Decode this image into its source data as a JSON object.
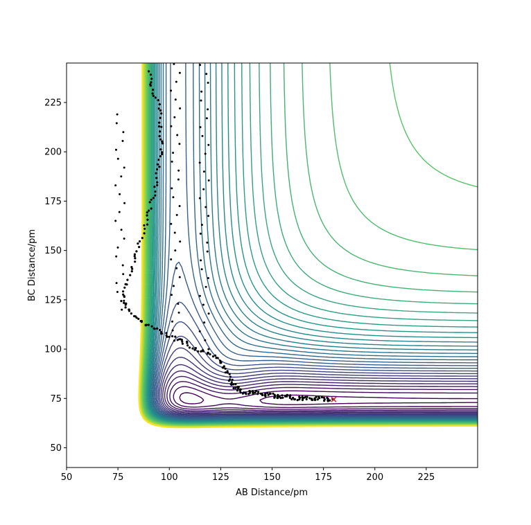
{
  "chart_data": {
    "type": "contour",
    "title": "",
    "xlabel": "AB Distance/pm",
    "ylabel": "BC Distance/pm",
    "xlim": [
      50,
      250
    ],
    "ylim": [
      40,
      245
    ],
    "xticks": [
      50,
      75,
      100,
      125,
      150,
      175,
      200,
      225
    ],
    "yticks": [
      50,
      75,
      100,
      125,
      150,
      175,
      200,
      225
    ],
    "xtick_labels": [
      "50",
      "75",
      "100",
      "125",
      "150",
      "175",
      "200",
      "225"
    ],
    "ytick_labels": [
      "50",
      "75",
      "100",
      "125",
      "150",
      "175",
      "200",
      "225"
    ],
    "colormap": [
      "#440154",
      "#3b528b",
      "#21918c",
      "#5ec962",
      "#fde725"
    ],
    "contour_levels": 40,
    "surface": {
      "well_depth": 1.0,
      "well_min_x": 95,
      "well_min_y": 74,
      "repulsive_wall_x": 64,
      "repulsive_wall_y": 42
    },
    "trajectory": {
      "color": "#000000",
      "points": [
        [
          90,
          240
        ],
        [
          92,
          232
        ],
        [
          95,
          222
        ],
        [
          96,
          212
        ],
        [
          96,
          202
        ],
        [
          95,
          192
        ],
        [
          93,
          182
        ],
        [
          91,
          172
        ],
        [
          88,
          162
        ],
        [
          85,
          152
        ],
        [
          82,
          142
        ],
        [
          79,
          132
        ],
        [
          77,
          125
        ],
        [
          80,
          120
        ],
        [
          84,
          116
        ],
        [
          88,
          113
        ],
        [
          93,
          110
        ],
        [
          98,
          108
        ],
        [
          103,
          105
        ],
        [
          108,
          103
        ],
        [
          113,
          100
        ],
        [
          118,
          98
        ],
        [
          123,
          96
        ],
        [
          126,
          92
        ],
        [
          128,
          88
        ],
        [
          130,
          84
        ],
        [
          132,
          81
        ],
        [
          134,
          79
        ],
        [
          137,
          78
        ],
        [
          140,
          78
        ],
        [
          143,
          78
        ],
        [
          146,
          77
        ],
        [
          149,
          77
        ],
        [
          152,
          76
        ],
        [
          155,
          76
        ],
        [
          158,
          76
        ],
        [
          161,
          75
        ],
        [
          164,
          75
        ],
        [
          167,
          75
        ],
        [
          170,
          75
        ],
        [
          173,
          75
        ],
        [
          176,
          74.5
        ],
        [
          180,
          74.5
        ]
      ],
      "extra_dot_columns": [
        {
          "x": 76,
          "y_start": 120,
          "y_end": 222
        },
        {
          "x": 103,
          "y_start": 105,
          "y_end": 245
        },
        {
          "x": 117,
          "y_start": 100,
          "y_end": 245
        }
      ]
    },
    "end_marker": {
      "x": 180,
      "y": 74.5,
      "symbol": "x",
      "color": "#d62728"
    }
  }
}
